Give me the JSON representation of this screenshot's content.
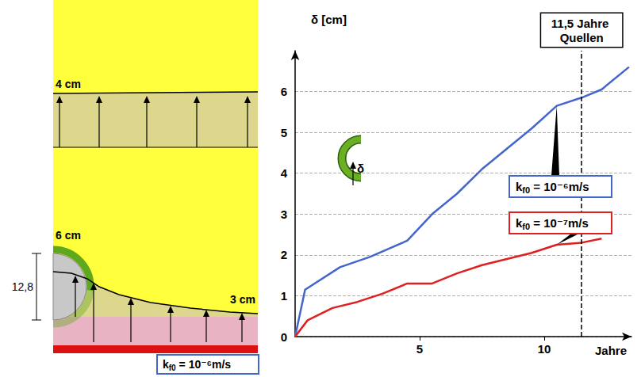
{
  "chart_data": {
    "type": "line",
    "y_label": "δ [cm]",
    "x_label": "Jahre",
    "xlim": [
      0,
      13.5
    ],
    "xticks": [
      5,
      10
    ],
    "ylim": [
      0,
      7
    ],
    "yticks": [
      0,
      1,
      2,
      3,
      4,
      5,
      6
    ],
    "grid": true,
    "series": [
      {
        "name": "kf0 = 10⁻⁶m/s",
        "color": "#4466cc",
        "x": [
          0,
          0.4,
          1.8,
          3,
          4.5,
          5.5,
          6.5,
          7.5,
          8.5,
          9.5,
          10.5,
          11.5,
          12.3,
          13.4
        ],
        "values": [
          0,
          1.15,
          1.7,
          1.95,
          2.35,
          3.0,
          3.5,
          4.1,
          4.6,
          5.1,
          5.65,
          5.85,
          6.05,
          6.6
        ]
      },
      {
        "name": "kf0 = 10⁻⁷m/s",
        "color": "#e02020",
        "x": [
          0,
          0.5,
          1.5,
          2.5,
          3.5,
          4.5,
          5.5,
          6.5,
          7.5,
          8.5,
          9.5,
          10.5,
          11.5,
          12.3
        ],
        "values": [
          0,
          0.4,
          0.7,
          0.85,
          1.05,
          1.3,
          1.3,
          1.55,
          1.75,
          1.9,
          2.05,
          2.25,
          2.3,
          2.4
        ]
      }
    ],
    "annotations": [
      {
        "text": "11,5 Jahre Quellen",
        "x": 11.5
      },
      {
        "text": "δ"
      }
    ]
  },
  "diagram": {
    "labels": {
      "top_heave": "4 cm",
      "lining_heave": "6 cm",
      "depth": "12,8",
      "invert_heave": "3 cm",
      "permeability": "kf0 = 10⁻⁶m/s"
    }
  }
}
